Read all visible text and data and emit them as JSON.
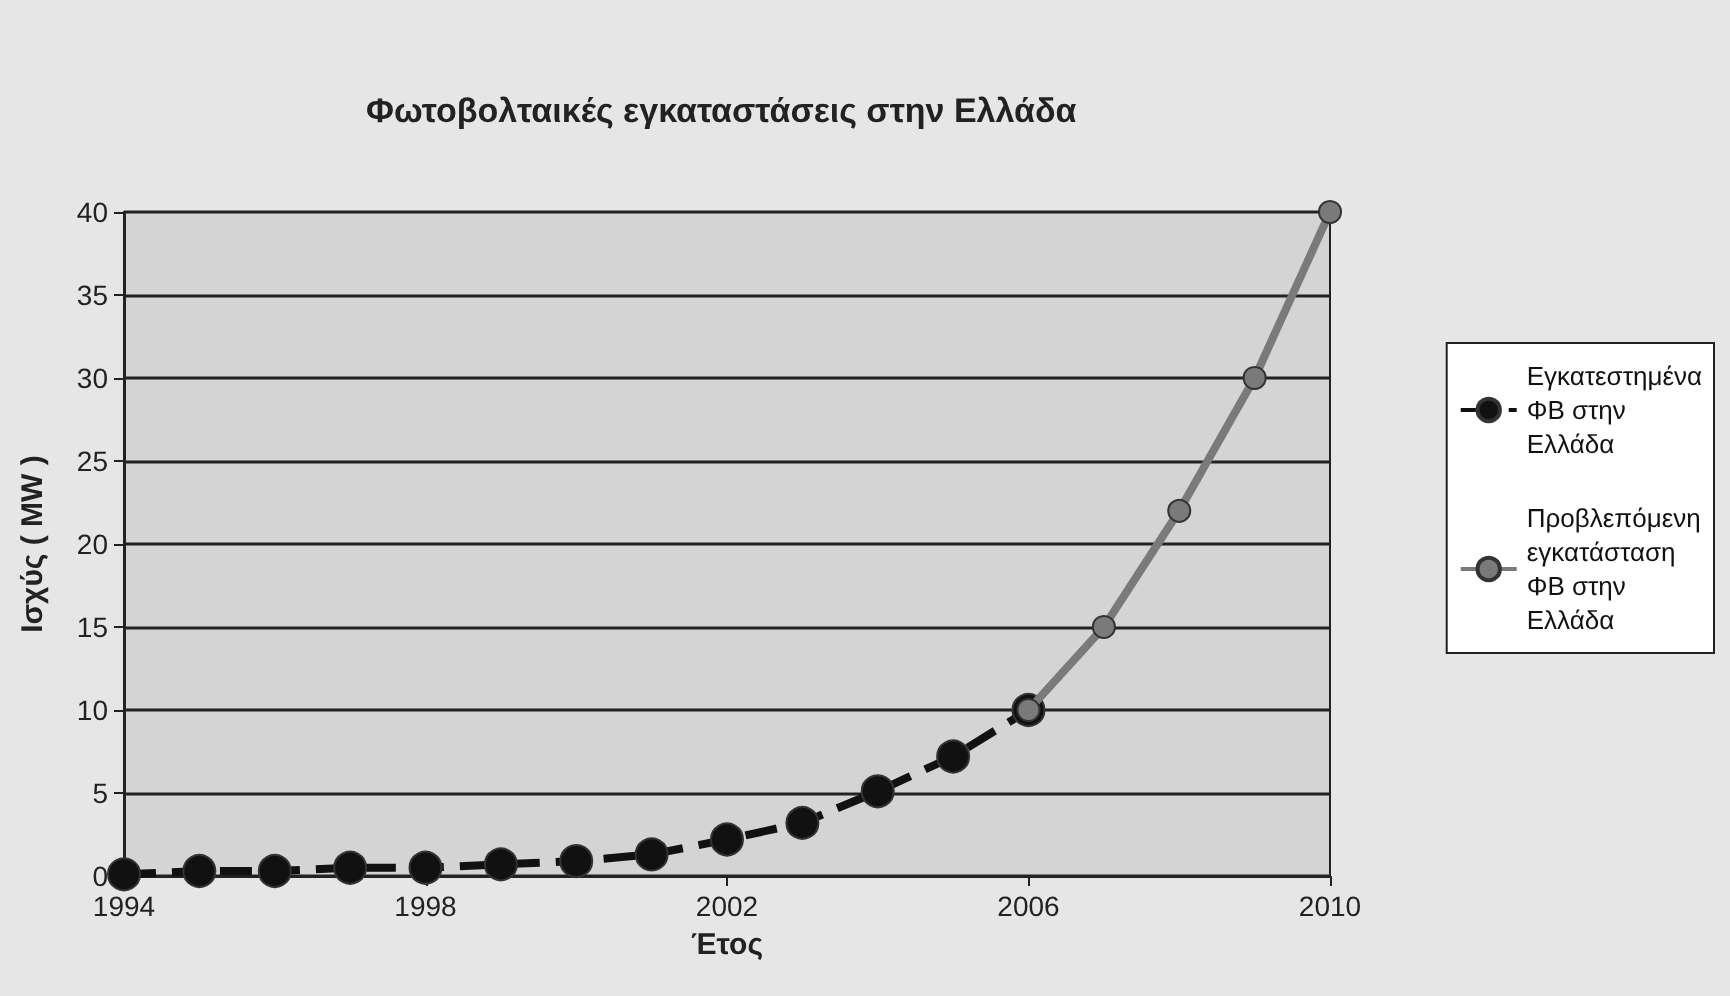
{
  "chart_data": {
    "type": "line",
    "title": "Φωτοβολταικές εγκαταστάσεις στην Ελλάδα",
    "xlabel": "Έτος",
    "ylabel": "Ισχύς ( MW )",
    "xlim": [
      1994,
      2010
    ],
    "xticks": [
      1994,
      1998,
      2002,
      2006,
      2010
    ],
    "ylim": [
      0,
      40
    ],
    "yticks": [
      0,
      5,
      10,
      15,
      20,
      25,
      30,
      35,
      40
    ],
    "grid": "y",
    "legend": "right",
    "marker": "circle",
    "series": [
      {
        "name": "Εγκατεστημένα ΦΒ στην Ελλάδα",
        "color": "#111111",
        "line_style": "dashed",
        "x": [
          1994,
          1995,
          1996,
          1997,
          1998,
          1999,
          2000,
          2001,
          2002,
          2003,
          2004,
          2005,
          2006
        ],
        "values": [
          0.1,
          0.3,
          0.3,
          0.5,
          0.5,
          0.7,
          0.9,
          1.3,
          2.2,
          3.2,
          5.1,
          7.2,
          10
        ]
      },
      {
        "name": "Προβλεπόμενη εγκατάσταση ΦΒ στην Ελλάδα",
        "color": "#7a7a7a",
        "line_style": "solid",
        "x": [
          2006,
          2007,
          2008,
          2009,
          2010
        ],
        "values": [
          10,
          15,
          22,
          30,
          40
        ]
      }
    ]
  }
}
